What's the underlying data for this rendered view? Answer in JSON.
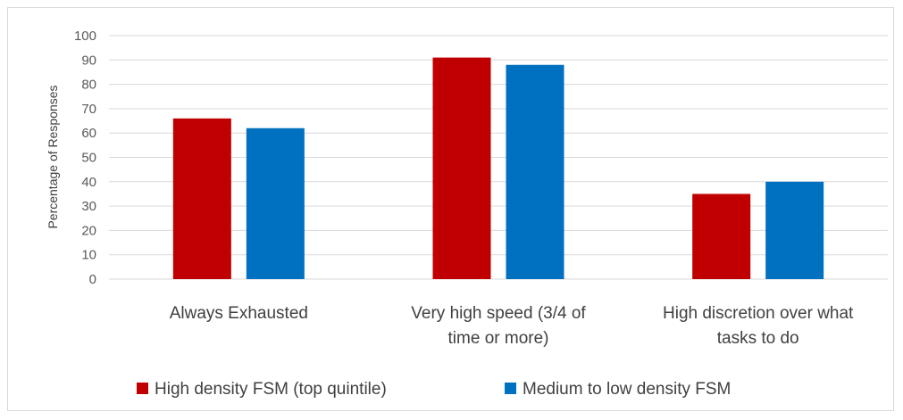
{
  "chart_data": {
    "type": "bar",
    "title": "",
    "xlabel": "",
    "ylabel": "Percentage of Responses",
    "ylim": [
      0,
      100
    ],
    "yticks": [
      0,
      10,
      20,
      30,
      40,
      50,
      60,
      70,
      80,
      90,
      100
    ],
    "grid": true,
    "legend_position": "bottom",
    "categories": [
      [
        "Always Exhausted"
      ],
      [
        "Very high speed (3/4 of",
        "time or more)"
      ],
      [
        "High discretion over what",
        "tasks to do"
      ]
    ],
    "series": [
      {
        "name": "High density FSM (top quintile)",
        "color": "#c00000",
        "values": [
          66,
          91,
          35
        ]
      },
      {
        "name": "Medium to low density FSM",
        "color": "#0070c0",
        "values": [
          62,
          88,
          40
        ]
      }
    ]
  }
}
